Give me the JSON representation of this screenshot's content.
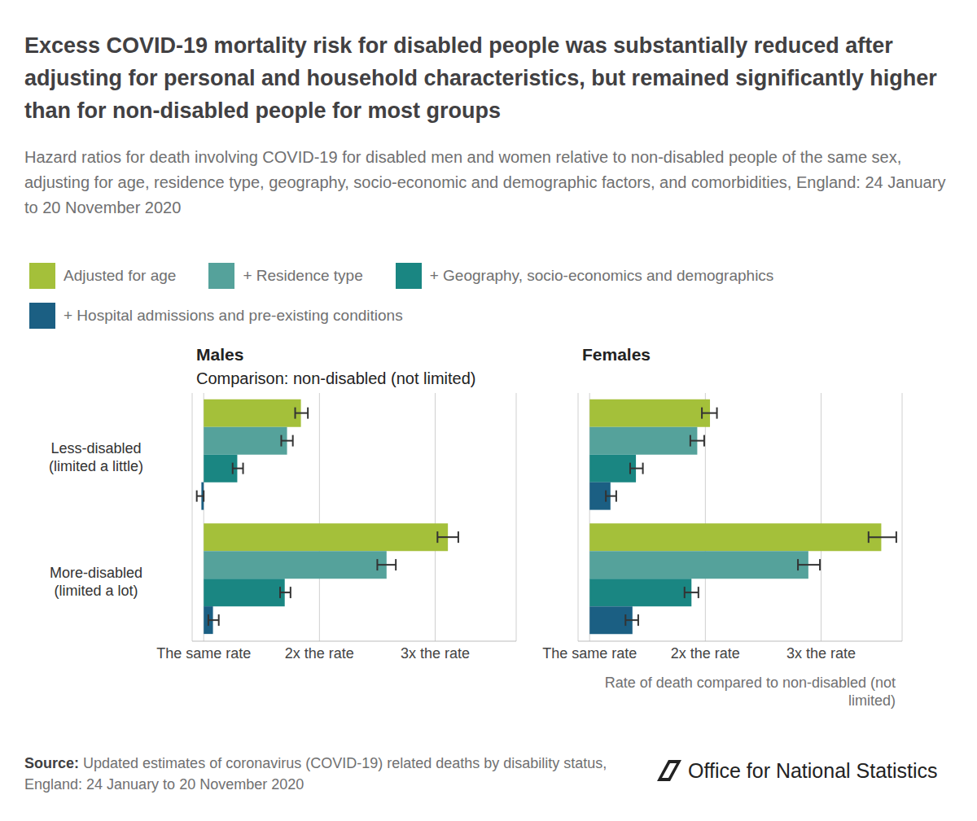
{
  "title": "Excess COVID-19 mortality risk for disabled people was substantially reduced after adjusting for personal and household characteristics, but remained significantly higher than for non-disabled people for most groups",
  "subtitle": "Hazard ratios for death involving COVID-19 for disabled men and women relative to non-disabled people of the same sex, adjusting for age, residence type, geography, socio-economic and demographic factors, and comorbidities, England: 24 January to 20 November 2020",
  "source_label": "Source:",
  "source": "Updated estimates of coronavirus (COVID-19) related deaths by disability status, England: 24 January to 20 November 2020",
  "logo": "Office for National Statistics",
  "chart_data": [
    {
      "type": "bar",
      "orientation": "horizontal",
      "legend": "top",
      "grid": true,
      "title": "Males",
      "subtitle": "Comparison: non-disabled (not limited)",
      "categories": [
        "Less-disabled (limited a little)",
        "More-disabled (limited a lot)"
      ],
      "xlim": [
        0.9,
        3.7
      ],
      "xticks": [
        {
          "value": 1,
          "label": "The same rate"
        },
        {
          "value": 2,
          "label": "2x the rate"
        },
        {
          "value": 3,
          "label": "3x the rate"
        }
      ],
      "series": [
        {
          "name": "Adjusted for age",
          "color": "#a4c03a",
          "values": [
            1.84,
            3.11
          ],
          "error_low": [
            1.79,
            3.02
          ],
          "error_high": [
            1.9,
            3.2
          ]
        },
        {
          "name": "+ Residence type",
          "color": "#55a29b",
          "values": [
            1.72,
            2.58
          ],
          "error_low": [
            1.67,
            2.5
          ],
          "error_high": [
            1.77,
            2.66
          ]
        },
        {
          "name": "+ Geography, socio-economics and demographics",
          "color": "#1a8682",
          "values": [
            1.29,
            1.7
          ],
          "error_low": [
            1.25,
            1.66
          ],
          "error_high": [
            1.34,
            1.75
          ]
        },
        {
          "name": "+ Hospital admissions and pre-existing conditions",
          "color": "#1b5f83",
          "values": [
            0.98,
            1.08
          ],
          "error_low": [
            0.94,
            1.04
          ],
          "error_high": [
            1.0,
            1.13
          ]
        }
      ]
    },
    {
      "type": "bar",
      "orientation": "horizontal",
      "grid": true,
      "title": "Females",
      "x_label": "Rate of death compared to non-disabled (not limited)",
      "categories": [
        "Less-disabled (limited a little)",
        "More-disabled (limited a lot)"
      ],
      "xlim": [
        0.9,
        3.7
      ],
      "xticks": [
        {
          "value": 1,
          "label": "The same rate"
        },
        {
          "value": 2,
          "label": "2x the rate"
        },
        {
          "value": 3,
          "label": "3x the rate"
        }
      ],
      "series": [
        {
          "name": "Adjusted for age",
          "color": "#a4c03a",
          "values": [
            2.04,
            3.52
          ],
          "error_low": [
            1.97,
            3.41
          ],
          "error_high": [
            2.1,
            3.65
          ]
        },
        {
          "name": "+ Residence type",
          "color": "#55a29b",
          "values": [
            1.93,
            2.89
          ],
          "error_low": [
            1.87,
            2.8
          ],
          "error_high": [
            1.99,
            2.99
          ]
        },
        {
          "name": "+ Geography, socio-economics and demographics",
          "color": "#1a8682",
          "values": [
            1.4,
            1.88
          ],
          "error_low": [
            1.35,
            1.82
          ],
          "error_high": [
            1.46,
            1.94
          ]
        },
        {
          "name": "+ Hospital admissions and pre-existing conditions",
          "color": "#1b5f83",
          "values": [
            1.18,
            1.37
          ],
          "error_low": [
            1.14,
            1.31
          ],
          "error_high": [
            1.23,
            1.42
          ]
        }
      ]
    }
  ]
}
